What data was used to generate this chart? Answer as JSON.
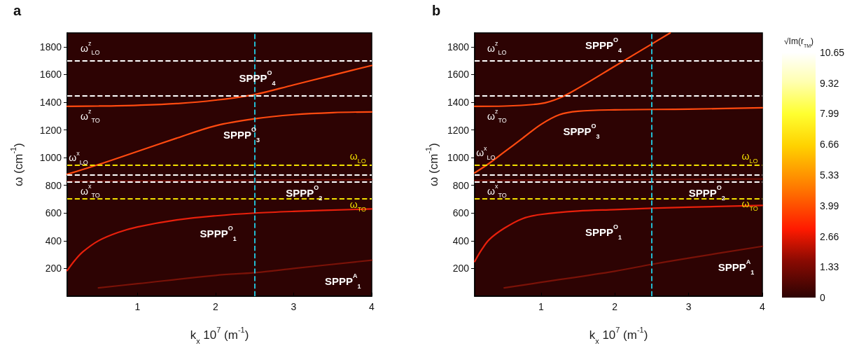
{
  "chart_data": [
    {
      "type": "line",
      "title": "a",
      "xlabel": "k$_{x}$ 10$^{7}$ (m$^{-1}$)",
      "ylabel": "ω (cm$^{-1}$)",
      "xlim": [
        0.1,
        4
      ],
      "xticks": [
        1,
        2,
        3,
        4
      ],
      "ylim": [
        0,
        1900
      ],
      "yticks": [
        200,
        400,
        600,
        800,
        1000,
        1200,
        1400,
        1600,
        1800
      ],
      "grid": false,
      "marker": "none",
      "series": [
        {
          "name": "SPPP$^{A}$$_{1}$",
          "color": "#7a1208",
          "x": [
            0.5,
            1,
            2,
            2.5,
            3,
            4
          ],
          "values": [
            60,
            90,
            150,
            170,
            200,
            260
          ]
        },
        {
          "name": "SPPP$^{O}$$_{1}$",
          "color": "#e8200c",
          "x": [
            0.1,
            0.2,
            0.3,
            0.5,
            0.75,
            1,
            1.5,
            2,
            2.5,
            3,
            4
          ],
          "values": [
            185,
            260,
            320,
            400,
            460,
            500,
            550,
            580,
            600,
            612,
            630
          ]
        },
        {
          "name": "SPPP$^{O}$$_{2}$",
          "color": "#6a0e06",
          "x": [
            0.1,
            1,
            2,
            3,
            4
          ],
          "values": [
            830,
            832,
            835,
            838,
            842
          ]
        },
        {
          "name": "SPPP$^{O}$$_{3}$",
          "color": "#ff4a10",
          "x": [
            0.1,
            0.5,
            1,
            1.5,
            2,
            2.5,
            3,
            3.5,
            4
          ],
          "values": [
            880,
            950,
            1045,
            1140,
            1230,
            1280,
            1310,
            1325,
            1330
          ]
        },
        {
          "name": "SPPP$^{O}$$_{4}$",
          "color": "#ff4a10",
          "x": [
            0.1,
            0.5,
            1,
            1.5,
            2,
            2.5,
            3,
            3.5,
            4
          ],
          "values": [
            1370,
            1372,
            1378,
            1390,
            1415,
            1455,
            1525,
            1595,
            1665
          ]
        }
      ],
      "ref_lines": [
        {
          "axis": "y",
          "value": 1700,
          "color": "#ffffff",
          "line_style": "dashed",
          "label": "ω$^{z}$$_{LO}$"
        },
        {
          "axis": "y",
          "value": 1445,
          "color": "#ffffff",
          "line_style": "dashed",
          "label": "ω$^{z}$$_{TO}$"
        },
        {
          "axis": "y",
          "value": 945,
          "color": "#f2e000",
          "line_style": "dashed",
          "label": "ω$_{LO}$"
        },
        {
          "axis": "y",
          "value": 875,
          "color": "#ffffff",
          "line_style": "dashed",
          "label": "ω$^{x}$$_{LO}$"
        },
        {
          "axis": "y",
          "value": 825,
          "color": "#ffffff",
          "line_style": "dashed",
          "label": "ω$^{x}$$_{TO}$"
        },
        {
          "axis": "y",
          "value": 705,
          "color": "#f2e000",
          "line_style": "dashed",
          "label": "ω$_{TO}$"
        },
        {
          "axis": "x",
          "value": 2.5,
          "color": "#22d0e8",
          "line_style": "dashed"
        }
      ]
    },
    {
      "type": "line",
      "title": "b",
      "xlabel": "k$_{x}$ 10$^{7}$ (m$^{-1}$)",
      "ylabel": "ω (cm$^{-1}$)",
      "xlim": [
        0.1,
        4
      ],
      "xticks": [
        1,
        2,
        3,
        4
      ],
      "ylim": [
        0,
        1900
      ],
      "yticks": [
        200,
        400,
        600,
        800,
        1000,
        1200,
        1400,
        1600,
        1800
      ],
      "grid": false,
      "marker": "none",
      "clabel": "√Im(r$_{TM}$)",
      "clim": [
        0,
        10.65
      ],
      "cticks": [
        0,
        1.33,
        2.66,
        3.99,
        5.33,
        6.66,
        7.99,
        9.32,
        10.65
      ],
      "series": [
        {
          "name": "SPPP$^{A}$$_{1}$",
          "color": "#7a1208",
          "x": [
            0.5,
            1,
            2,
            2.5,
            3,
            4
          ],
          "values": [
            60,
            100,
            180,
            230,
            275,
            360
          ]
        },
        {
          "name": "SPPP$^{O}$$_{1}$",
          "color": "#e8200c",
          "x": [
            0.1,
            0.2,
            0.3,
            0.5,
            0.75,
            1,
            1.5,
            2,
            2.5,
            3,
            4
          ],
          "values": [
            250,
            340,
            410,
            490,
            560,
            590,
            615,
            625,
            635,
            642,
            655
          ]
        },
        {
          "name": "SPPP$^{O}$$_{2}$",
          "color": "#6a0e06",
          "x": [
            0.1,
            1,
            2,
            3,
            4
          ],
          "values": [
            835,
            838,
            840,
            843,
            846
          ]
        },
        {
          "name": "SPPP$^{O}$$_{3}$",
          "color": "#ff4a10",
          "x": [
            0.1,
            0.3,
            0.5,
            0.75,
            1,
            1.25,
            1.5,
            2,
            3,
            4
          ],
          "values": [
            890,
            960,
            1040,
            1140,
            1240,
            1310,
            1335,
            1345,
            1350,
            1360
          ]
        },
        {
          "name": "SPPP$^{O}$$_{4}$",
          "color": "#ff4a10",
          "x": [
            0.1,
            0.5,
            1,
            1.25,
            1.5,
            2,
            2.5,
            2.75
          ],
          "values": [
            1370,
            1372,
            1390,
            1430,
            1500,
            1660,
            1820,
            1900
          ]
        }
      ],
      "ref_lines": [
        {
          "axis": "y",
          "value": 1700,
          "color": "#ffffff",
          "line_style": "dashed",
          "label": "ω$^{z}$$_{LO}$"
        },
        {
          "axis": "y",
          "value": 1445,
          "color": "#ffffff",
          "line_style": "dashed",
          "label": "ω$^{z}$$_{TO}$"
        },
        {
          "axis": "y",
          "value": 945,
          "color": "#f2e000",
          "line_style": "dashed",
          "label": "ω$_{LO}$"
        },
        {
          "axis": "y",
          "value": 875,
          "color": "#ffffff",
          "line_style": "dashed",
          "label": "ω$^{x}$$_{LO}$"
        },
        {
          "axis": "y",
          "value": 825,
          "color": "#ffffff",
          "line_style": "dashed",
          "label": "ω$^{x}$$_{TO}$"
        },
        {
          "axis": "y",
          "value": 705,
          "color": "#f2e000",
          "line_style": "dashed",
          "label": "ω$_{TO}$"
        },
        {
          "axis": "x",
          "value": 2.5,
          "color": "#22d0e8",
          "line_style": "dashed"
        }
      ]
    }
  ]
}
